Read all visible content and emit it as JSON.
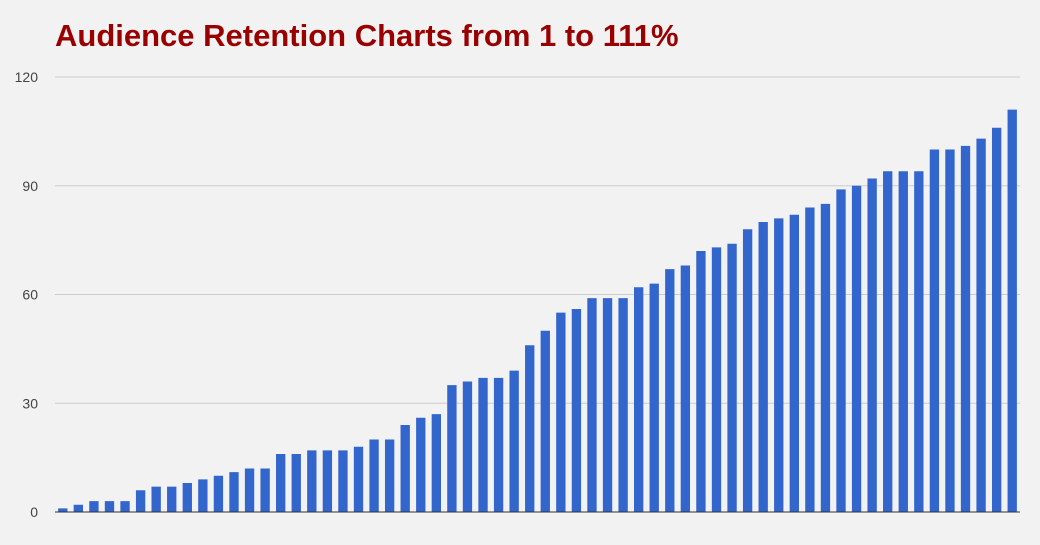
{
  "chart_data": {
    "type": "bar",
    "title": "Audience Retention Charts from 1 to 111%",
    "xlabel": "",
    "ylabel": "",
    "ylim": [
      0,
      120
    ],
    "yticks": [
      "0",
      "30",
      "60",
      "90",
      "120"
    ],
    "grid": true,
    "values": [
      1,
      2,
      3,
      3,
      3,
      6,
      7,
      7,
      8,
      9,
      10,
      11,
      12,
      12,
      16,
      16,
      17,
      17,
      17,
      18,
      20,
      20,
      24,
      26,
      27,
      35,
      36,
      37,
      37,
      39,
      46,
      50,
      55,
      56,
      59,
      59,
      59,
      62,
      63,
      67,
      68,
      72,
      73,
      74,
      78,
      80,
      81,
      82,
      84,
      85,
      89,
      90,
      92,
      94,
      94,
      94,
      100,
      100,
      101,
      103,
      106,
      111
    ]
  },
  "colors": {
    "bar": "#3366cc",
    "title": "#990000",
    "grid": "#cccccc",
    "background": "#f2f2f2"
  }
}
